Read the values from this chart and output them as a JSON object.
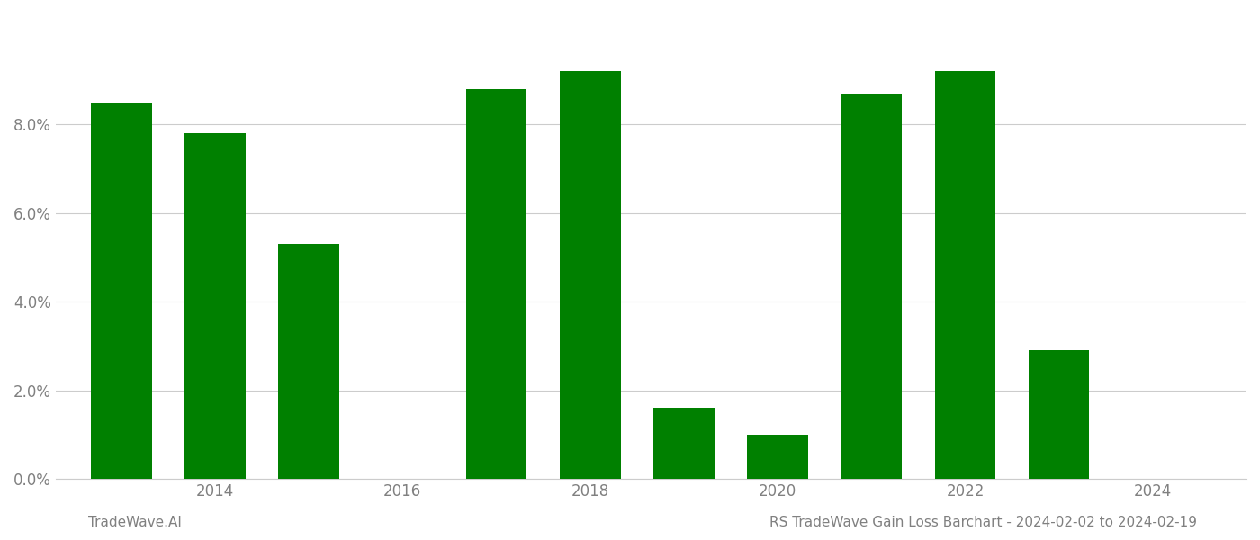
{
  "years": [
    2013,
    2014,
    2015,
    2017,
    2018,
    2019,
    2020,
    2021,
    2022,
    2023
  ],
  "values": [
    0.085,
    0.078,
    0.053,
    0.088,
    0.092,
    0.016,
    0.01,
    0.087,
    0.092,
    0.029
  ],
  "bar_color": "#008000",
  "background_color": "#ffffff",
  "grid_color": "#cccccc",
  "ylabel_color": "#808080",
  "xlabel_color": "#808080",
  "xtick_years": [
    2014,
    2016,
    2018,
    2020,
    2022,
    2024
  ],
  "ylim": [
    0,
    0.105
  ],
  "xlim": [
    2012.3,
    2025.0
  ],
  "bar_width": 0.65,
  "footer_left": "TradeWave.AI",
  "footer_right": "RS TradeWave Gain Loss Barchart - 2024-02-02 to 2024-02-19",
  "footer_color": "#808080",
  "footer_fontsize": 11,
  "tick_fontsize": 12
}
